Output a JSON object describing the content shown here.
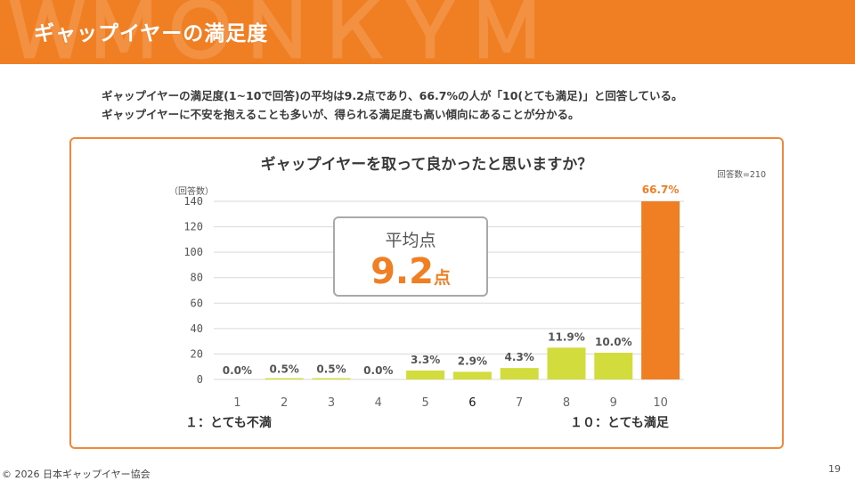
{
  "header": {
    "title": "ギャップイヤーの満足度",
    "accent_color": "#f07f24"
  },
  "description": {
    "line1": "ギャップイヤーの満足度(1~10で回答)の平均は9.2点であり、66.7%の人が「10(とても満足)」と回答している。",
    "line2": "ギャップイヤーに不安を抱えることも多いが、得られる満足度も高い傾向にあることが分かる。"
  },
  "chart_data": {
    "type": "bar",
    "title": "ギャップイヤーを取って良かったと思いますか？",
    "sample_note": "回答数=210",
    "ylabel": "（回答数）",
    "ylim": [
      0,
      140
    ],
    "yticks": [
      0,
      20,
      40,
      60,
      80,
      100,
      120,
      140
    ],
    "categories": [
      "1",
      "2",
      "3",
      "4",
      "5",
      "6",
      "7",
      "8",
      "9",
      "10"
    ],
    "values": [
      0,
      1,
      1,
      0,
      7,
      6,
      9,
      25,
      21,
      140
    ],
    "data_labels": [
      "0.0%",
      "0.5%",
      "0.5%",
      "0.0%",
      "3.3%",
      "2.9%",
      "4.3%",
      "11.9%",
      "10.0%",
      "66.7%"
    ],
    "bar_color": "#d2dc3c",
    "highlight_color": "#f07f24",
    "highlight_index": 9,
    "grid": true,
    "scale_low_label": "１：とても不満",
    "scale_high_label": "１０：とても満足"
  },
  "average": {
    "label": "平均点",
    "value": "9.2",
    "unit": "点"
  },
  "footer": {
    "copyright": "© 2026 日本ギャップイヤー協会",
    "page_number": "19"
  }
}
